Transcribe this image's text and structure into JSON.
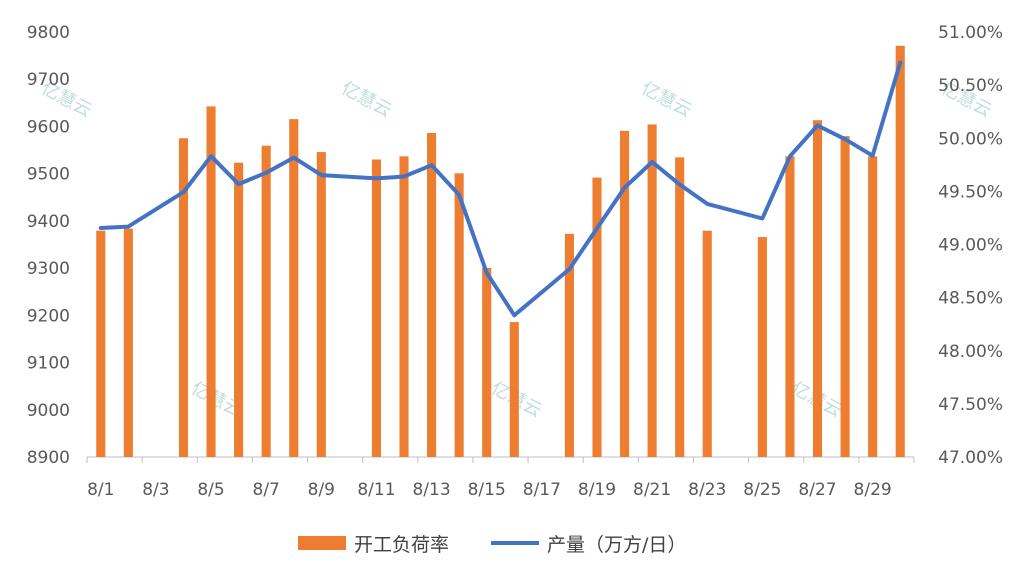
{
  "chart_data": {
    "type": "bar+line",
    "title": "",
    "xlabel": "",
    "categories": [
      "8/1",
      "8/2",
      "8/3",
      "8/4",
      "8/5",
      "8/6",
      "8/7",
      "8/8",
      "8/9",
      "8/10",
      "8/11",
      "8/12",
      "8/13",
      "8/14",
      "8/15",
      "8/16",
      "8/17",
      "8/18",
      "8/19",
      "8/20",
      "8/21",
      "8/22",
      "8/23",
      "8/24",
      "8/25",
      "8/26",
      "8/27",
      "8/28",
      "8/29",
      "8/30"
    ],
    "x_tick_labels": [
      "8/1",
      "8/3",
      "8/5",
      "8/7",
      "8/9",
      "8/11",
      "8/13",
      "8/15",
      "8/17",
      "8/19",
      "8/21",
      "8/23",
      "8/25",
      "8/27",
      "8/29"
    ],
    "series": [
      {
        "name": "开工负荷率",
        "type": "bar",
        "axis": "right",
        "color": "#ED7D31",
        "values": [
          49.13,
          49.15,
          null,
          50.0,
          50.3,
          49.77,
          49.93,
          50.18,
          49.87,
          null,
          49.8,
          49.83,
          50.05,
          49.67,
          48.78,
          48.27,
          null,
          49.1,
          49.63,
          50.07,
          50.13,
          49.82,
          49.13,
          null,
          49.07,
          49.83,
          50.17,
          50.02,
          49.83,
          50.87
        ]
      },
      {
        "name": "产量（万方/日）",
        "type": "line",
        "axis": "left",
        "color": "#4472C4",
        "values": [
          9385,
          9388,
          null,
          9461,
          9537,
          9478,
          9502,
          9534,
          9497,
          null,
          9490,
          9494,
          9518,
          9455,
          9290,
          9200,
          null,
          9298,
          9384,
          9470,
          9525,
          9477,
          9436,
          null,
          9405,
          9537,
          9602,
          9573,
          9538,
          9735
        ]
      }
    ],
    "left_axis": {
      "min": 8900,
      "max": 9800,
      "step": 100,
      "tick_labels": [
        "8900",
        "9000",
        "9100",
        "9200",
        "9300",
        "9400",
        "9500",
        "9600",
        "9700",
        "9800"
      ]
    },
    "right_axis": {
      "min": 47.0,
      "max": 51.0,
      "step": 0.5,
      "tick_labels": [
        "47.00%",
        "47.50%",
        "48.00%",
        "48.50%",
        "49.00%",
        "49.50%",
        "50.00%",
        "50.50%",
        "51.00%"
      ]
    },
    "legend": {
      "position": "bottom",
      "items": [
        {
          "label": "开工负荷率",
          "color": "#ED7D31",
          "kind": "bar"
        },
        {
          "label": "产量（万方/日）",
          "color": "#4472C4",
          "kind": "line"
        }
      ]
    },
    "watermarks": [
      "亿慧云",
      "亿慧云",
      "亿慧云",
      "亿慧云",
      "亿慧云",
      "亿慧云",
      "亿慧云",
      "亿慧云"
    ],
    "grid": false
  }
}
